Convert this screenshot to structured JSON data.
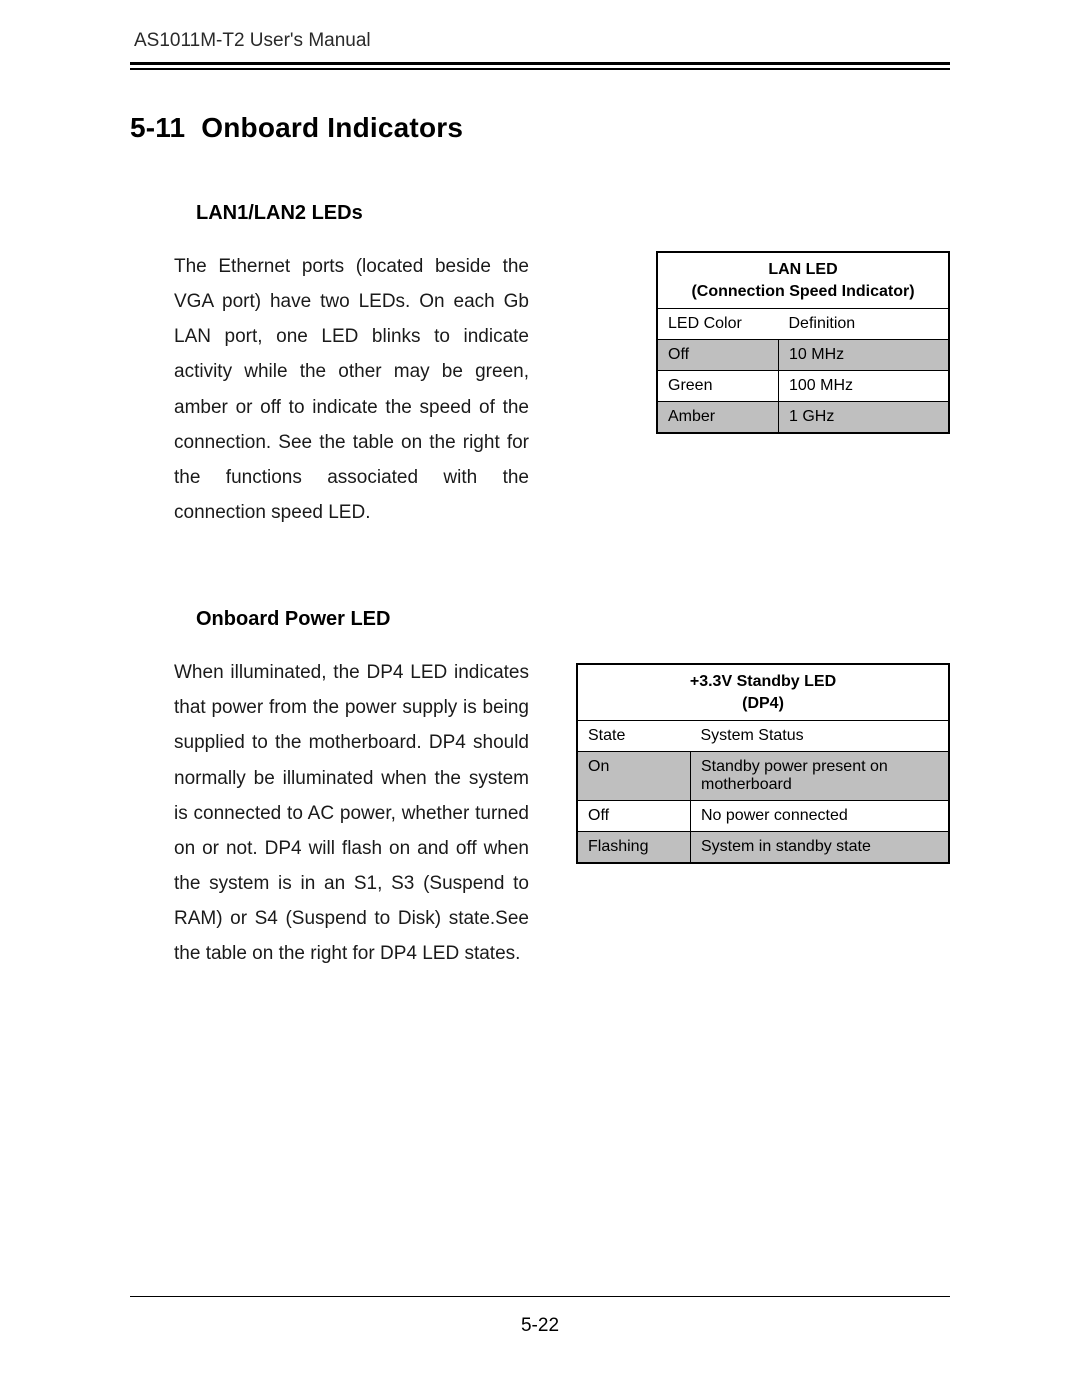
{
  "header": {
    "running_head": "AS1011M-T2 User's Manual"
  },
  "section": {
    "number": "5-11",
    "title": "Onboard Indicators"
  },
  "lan": {
    "subhead": "LAN1/LAN2 LEDs",
    "paragraph": "The Ethernet ports (located beside the VGA port) have two LEDs.  On each Gb LAN port, one LED blinks to indicate activity while the other may be green, amber or off to indicate the speed of the connection.  See the table on the right for the func­tions associated with the connection speed LED.",
    "table": {
      "title_line1": "LAN LED",
      "title_line2": "(Connection Speed Indicator)",
      "col1": "LED Color",
      "col2": "Definition",
      "rows": [
        {
          "c1": "Off",
          "c2": "10 MHz",
          "shaded": true
        },
        {
          "c1": "Green",
          "c2": "100 MHz",
          "shaded": false
        },
        {
          "c1": "Amber",
          "c2": "1 GHz",
          "shaded": true
        }
      ],
      "colors": {
        "border": "#000000",
        "shade": "#bfbfbf",
        "bg": "#ffffff"
      }
    }
  },
  "power": {
    "subhead": "Onboard Power LED",
    "paragraph": "When illuminated, the DP4 LED indi­cates that power from the power supply is being supplied to the motherboard.  DP4 should normally be illuminated when the system is connected to AC power, whether turned on or not.  DP4 will flash on and off when the system is in an S1, S3 (Suspend to RAM) or S4 (Suspend to Disk) state.See the table on the right for DP4 LED states.",
    "table": {
      "title_line1": "+3.3V Standby LED",
      "title_line2": "(DP4)",
      "col1": "State",
      "col2": "System Status",
      "rows": [
        {
          "c1": "On",
          "c2": "Standby power present on motherboard",
          "shaded": true
        },
        {
          "c1": "Off",
          "c2": "No power connected",
          "shaded": false
        },
        {
          "c1": "Flashing",
          "c2": "System in standby state",
          "shaded": true
        }
      ],
      "colors": {
        "border": "#000000",
        "shade": "#bfbfbf",
        "bg": "#ffffff"
      }
    }
  },
  "footer": {
    "page_number": "5-22"
  }
}
